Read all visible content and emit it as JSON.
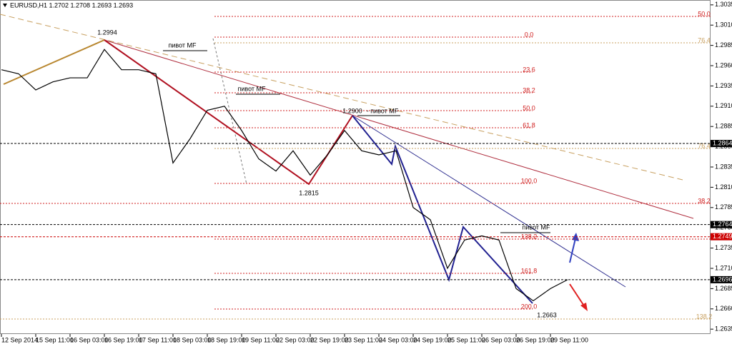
{
  "chart_data": {
    "type": "line",
    "title": "EURUSD,H1  1.2702 1.2708 1.2693 1.2693",
    "categories": [
      "12 Sep 2014",
      null,
      "15 Sep 11:00",
      null,
      "16 Sep 03:00",
      null,
      "16 Sep 19:00",
      null,
      "17 Sep 11:00",
      null,
      "18 Sep 03:00",
      null,
      "18 Sep 19:00",
      null,
      "19 Sep 11:00",
      null,
      "22 Sep 03:00",
      null,
      "22 Sep 19:00",
      null,
      "23 Sep 11:00",
      null,
      "24 Sep 03:00",
      null,
      "24 Sep 19:00",
      null,
      "25 Sep 11:00",
      null,
      "26 Sep 03:00",
      null,
      "26 Sep 19:00",
      null,
      "29 Sep 11:00",
      null
    ],
    "series": [
      {
        "name": "EURUSD",
        "color": "#000000",
        "values": [
          1.2955,
          1.295,
          1.293,
          1.294,
          1.2945,
          1.2945,
          1.298,
          1.2955,
          1.2955,
          1.295,
          1.284,
          1.287,
          1.2905,
          1.291,
          1.288,
          1.2845,
          1.283,
          1.2855,
          1.2825,
          1.285,
          1.288,
          1.2855,
          1.285,
          1.2855,
          1.2785,
          1.277,
          1.271,
          1.2745,
          1.275,
          1.2745,
          1.2685,
          1.267,
          1.2685,
          1.2696
        ]
      }
    ],
    "ylim": [
      1.2629,
      1.3041
    ],
    "yticks": [
      1.3035,
      {
        "value": 1.301,
        "label": "1.3010"
      },
      1.2985,
      {
        "value": 1.296,
        "label": "1.2960"
      },
      1.2935,
      {
        "value": 1.291,
        "label": "1.2910"
      },
      1.2885,
      {
        "value": 1.286,
        "label": "1.2860"
      },
      1.2835,
      {
        "value": 1.281,
        "label": "1.2810"
      },
      1.2785,
      {
        "value": 1.276,
        "label": "1.2760"
      },
      1.2735,
      {
        "value": 1.271,
        "label": "1.2710"
      },
      1.2685,
      {
        "value": 1.266,
        "label": "1.2660"
      },
      1.2635
    ],
    "levels": [
      {
        "value": 1.2864,
        "color": "#000000"
      },
      {
        "value": 1.2764,
        "color": "#000000"
      },
      {
        "value": 1.2749,
        "color": "#cc0000"
      },
      {
        "value": 1.2696,
        "color": "#000000"
      }
    ],
    "annotations": [
      "1.2994",
      "пивот MF",
      "пивот MF",
      "1.2900",
      "- пивот MF",
      "1.2815",
      "пивот MF",
      "1.2663"
    ],
    "fib_labels": [
      "50.0",
      "76.4",
      "0.0",
      "23.6",
      "38.2",
      "50.0",
      "61.8",
      "76.4",
      "100.0",
      "38.2",
      "138.2",
      "161.8",
      "200.0",
      "138.2"
    ]
  }
}
